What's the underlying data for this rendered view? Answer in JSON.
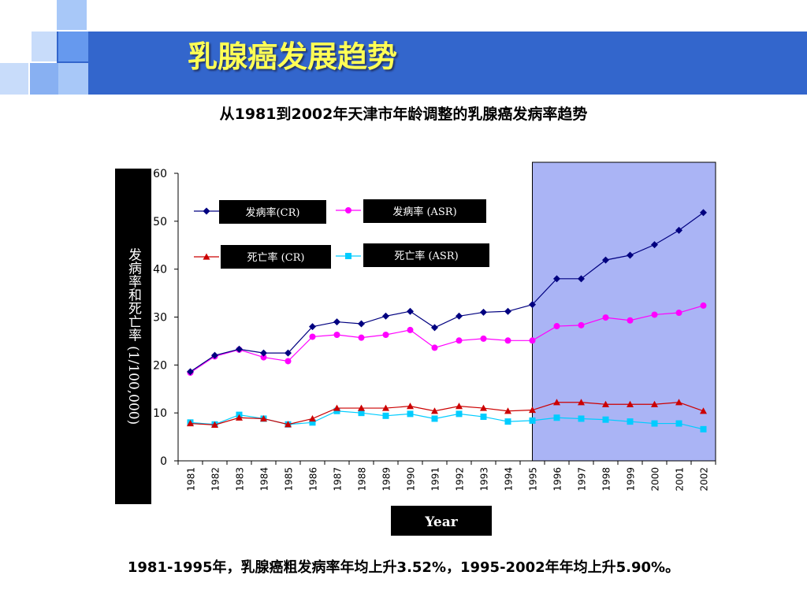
{
  "slide": {
    "title": "乳腺癌发展趋势",
    "summary": "1981-1995年，乳腺癌粗发病率年均上升3.52%，1995-2002年年均上升5.90%。"
  },
  "colors": {
    "header_band": "#3366cc",
    "highlight_region": "#aab4f5",
    "incidence_cr": "#000080",
    "incidence_asr": "#ff00ff",
    "mortality_cr": "#cc0000",
    "mortality_asr": "#00ccff"
  },
  "chart_data": {
    "type": "line",
    "title": "从1981到2002年天津市年龄调整的乳腺癌发病率趋势",
    "xlabel": "Year",
    "ylabel": "发病率和死亡率 (1/100,000)",
    "ylim": [
      0,
      60
    ],
    "yticks": [
      0,
      10,
      20,
      30,
      40,
      50,
      60
    ],
    "grid": false,
    "legend_position": "top-left",
    "highlight_x_range": [
      "1995",
      "2002"
    ],
    "categories": [
      "1981",
      "1982",
      "1983",
      "1984",
      "1985",
      "1986",
      "1987",
      "1988",
      "1989",
      "1990",
      "1991",
      "1992",
      "1993",
      "1994",
      "1995",
      "1996",
      "1997",
      "1998",
      "1999",
      "2000",
      "2001",
      "2002"
    ],
    "series": [
      {
        "name": "发病率(CR)",
        "marker": "diamond",
        "color": "#000080",
        "values": [
          18.6,
          22.0,
          23.3,
          22.5,
          22.5,
          28.0,
          29.0,
          28.6,
          30.2,
          31.2,
          27.8,
          30.2,
          31.0,
          31.2,
          32.6,
          38.0,
          38.0,
          41.9,
          42.9,
          45.1,
          48.1,
          51.8
        ]
      },
      {
        "name": "发病率 (ASR)",
        "marker": "circle",
        "color": "#ff00ff",
        "values": [
          18.4,
          21.8,
          23.2,
          21.6,
          20.8,
          25.9,
          26.3,
          25.7,
          26.3,
          27.3,
          23.6,
          25.1,
          25.5,
          25.1,
          25.1,
          28.1,
          28.3,
          29.9,
          29.3,
          30.5,
          30.9,
          32.4
        ]
      },
      {
        "name": "死亡率 (CR)",
        "marker": "triangle",
        "color": "#cc0000",
        "values": [
          7.8,
          7.5,
          9.0,
          8.8,
          7.6,
          8.8,
          11.0,
          11.0,
          11.0,
          11.4,
          10.4,
          11.4,
          11.0,
          10.4,
          10.6,
          12.2,
          12.2,
          11.8,
          11.8,
          11.8,
          12.2,
          10.4
        ]
      },
      {
        "name": "死亡率 (ASR)",
        "marker": "square",
        "color": "#00ccff",
        "values": [
          8.0,
          7.6,
          9.6,
          8.8,
          7.6,
          8.0,
          10.4,
          10.0,
          9.4,
          9.8,
          8.8,
          9.8,
          9.2,
          8.2,
          8.4,
          9.0,
          8.8,
          8.6,
          8.2,
          7.8,
          7.8,
          6.6
        ]
      }
    ]
  }
}
